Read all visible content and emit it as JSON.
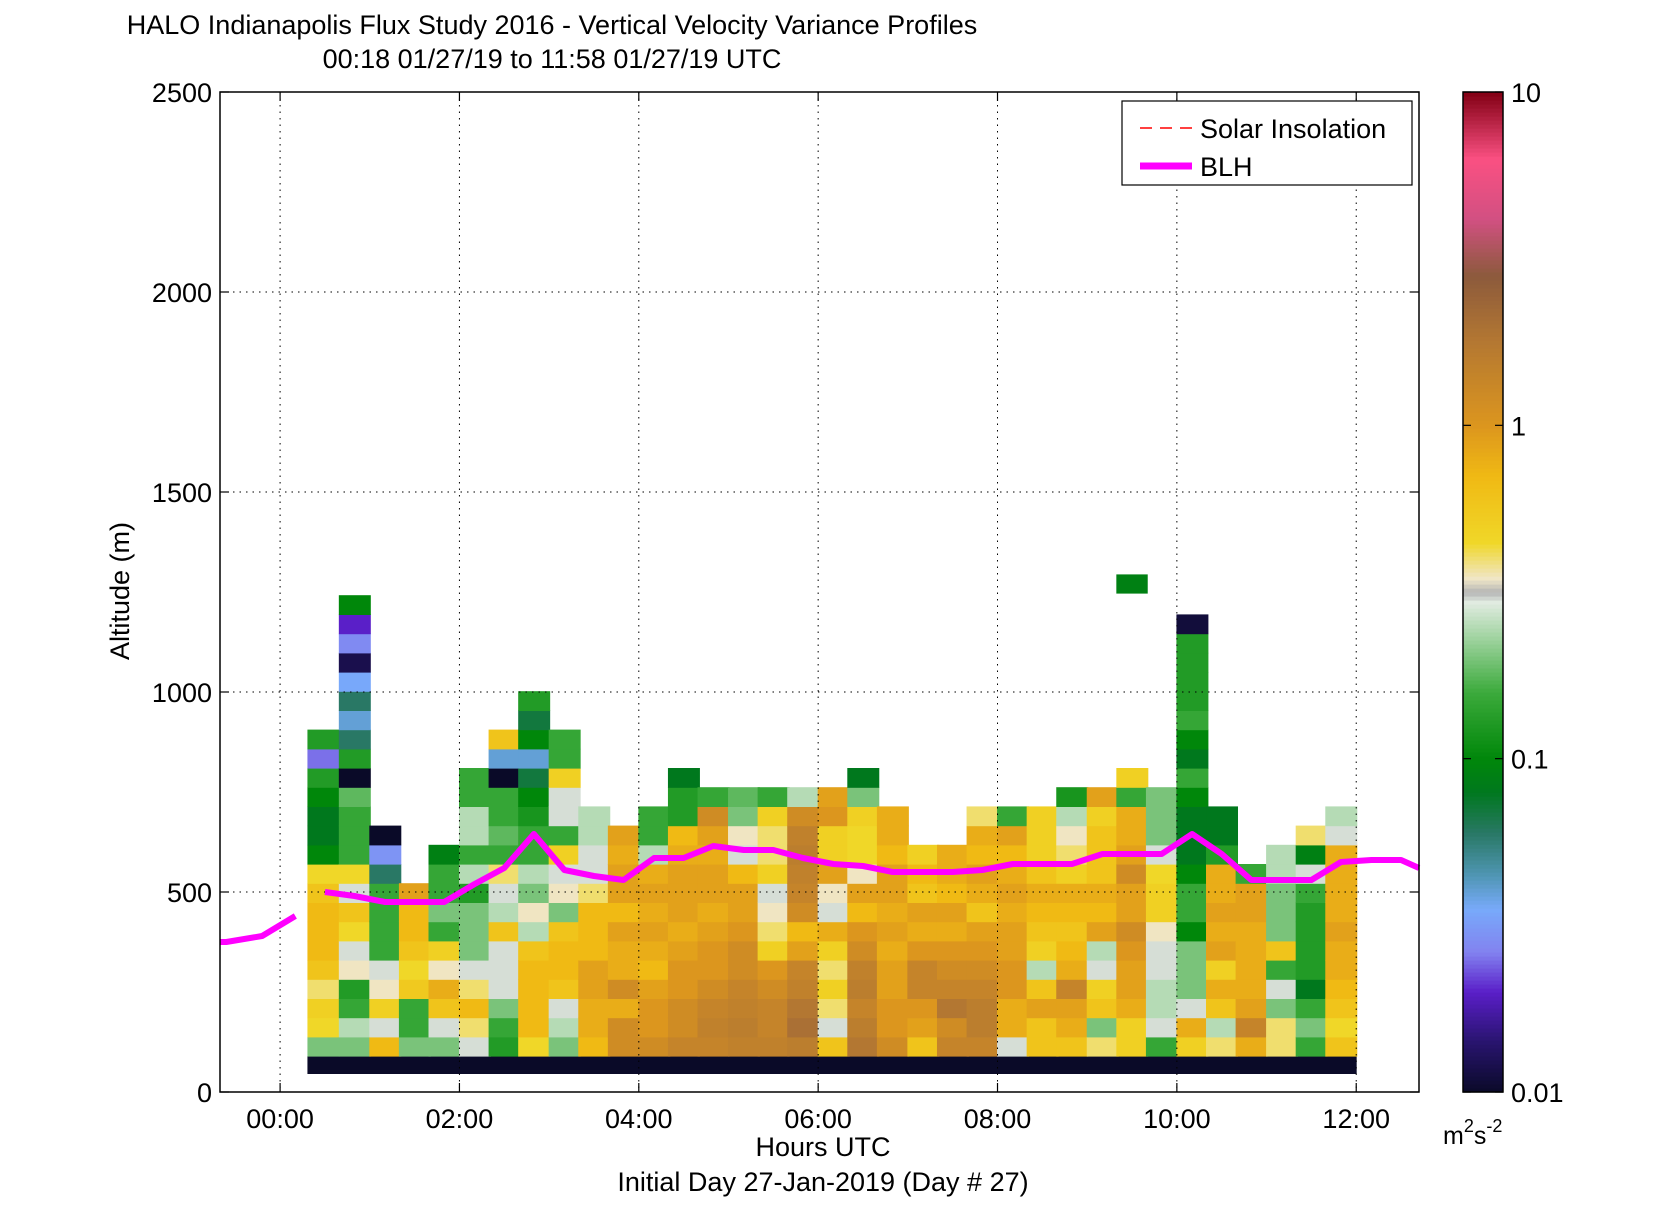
{
  "chart_data": {
    "type": "heatmap",
    "title": "HALO Indianapolis Flux Study 2016 - Vertical Velocity Variance Profiles",
    "subtitle": "00:18 01/27/19 to 11:58 01/27/19  UTC",
    "xlabel": "Hours UTC",
    "footer": "Initial Day 27-Jan-2019 (Day # 27)",
    "ylabel": "Altitude (m)",
    "xlim": [
      -0.67,
      12.7
    ],
    "ylim": [
      0,
      2500
    ],
    "x_ticks": [
      0,
      2,
      4,
      6,
      8,
      10,
      12
    ],
    "x_tick_labels": [
      "00:00",
      "02:00",
      "04:00",
      "06:00",
      "08:00",
      "10:00",
      "12:00"
    ],
    "y_ticks": [
      0,
      500,
      1000,
      1500,
      2000,
      2500
    ],
    "y_tick_labels": [
      "0",
      "500",
      "1000",
      "1500",
      "2000",
      "2500"
    ],
    "grid": true,
    "colorbar": {
      "scale": "log",
      "range": [
        0.01,
        10
      ],
      "ticks": [
        0.01,
        0.1,
        1,
        10
      ],
      "tick_labels": [
        "0.01",
        "0.1",
        "1",
        "10"
      ],
      "units_base": "m",
      "units_sup1": "2",
      "units_mid": "s",
      "units_sup2": "-2"
    },
    "legend": {
      "position": "top-right",
      "entries": [
        "Solar Insolation",
        "BLH"
      ],
      "colors": [
        "#ff0000",
        "#ff00ff"
      ]
    },
    "blh_series": {
      "name": "BLH",
      "color": "#ff00ff",
      "segments": [
        [
          [
            -0.67,
            375
          ],
          [
            -0.6,
            375
          ],
          [
            -0.2,
            390
          ],
          [
            0.17,
            440
          ]
        ],
        [
          [
            0.5,
            500
          ],
          [
            0.83,
            490
          ],
          [
            1.17,
            475
          ],
          [
            1.5,
            475
          ],
          [
            1.83,
            475
          ],
          [
            2.17,
            520
          ],
          [
            2.5,
            560
          ],
          [
            2.83,
            645
          ],
          [
            3.17,
            555
          ],
          [
            3.5,
            540
          ],
          [
            3.83,
            530
          ],
          [
            4.17,
            585
          ],
          [
            4.5,
            585
          ],
          [
            4.83,
            615
          ],
          [
            5.17,
            605
          ],
          [
            5.5,
            605
          ],
          [
            5.83,
            585
          ],
          [
            6.17,
            570
          ],
          [
            6.5,
            565
          ],
          [
            6.83,
            550
          ],
          [
            7.17,
            550
          ],
          [
            7.5,
            550
          ],
          [
            7.83,
            555
          ],
          [
            8.17,
            570
          ],
          [
            8.5,
            570
          ],
          [
            8.83,
            570
          ],
          [
            9.17,
            595
          ],
          [
            9.5,
            595
          ],
          [
            9.83,
            595
          ],
          [
            10.17,
            645
          ],
          [
            10.5,
            595
          ],
          [
            10.83,
            530
          ],
          [
            11.17,
            530
          ],
          [
            11.5,
            530
          ],
          [
            11.83,
            575
          ],
          [
            12.17,
            580
          ],
          [
            12.5,
            580
          ],
          [
            12.83,
            560
          ]
        ]
      ]
    },
    "profile_times": [
      0.48,
      0.83,
      1.17,
      1.5,
      1.83,
      2.17,
      2.5,
      2.83,
      3.17,
      3.5,
      3.83,
      4.17,
      4.5,
      4.83,
      5.17,
      5.5,
      5.83,
      6.17,
      6.5,
      6.83,
      7.17,
      7.5,
      7.83,
      8.17,
      8.5,
      8.83,
      9.17,
      9.5,
      9.83,
      10.17,
      10.5,
      10.83,
      11.17,
      11.5,
      11.83
    ],
    "altitude_bin_m": 48,
    "near_surface_band": {
      "z0": 45,
      "z1": 90,
      "value": 0.01
    },
    "profiles": [
      [
        0.2,
        0.45,
        0.5,
        0.4,
        0.6,
        0.7,
        0.7,
        0.7,
        0.6,
        0.45,
        0.1,
        0.08,
        0.08,
        0.1,
        0.13,
        0.025,
        0.13
      ],
      [
        0.2,
        0.25,
        0.15,
        0.13,
        0.35,
        0.3,
        0.45,
        0.6,
        0.3,
        0.45,
        0.15,
        0.15,
        0.15,
        0.18,
        0.01,
        0.13,
        0.06,
        0.04,
        0.06,
        0.035,
        0.012,
        0.028,
        0.02,
        0.1
      ],
      [
        0.7,
        0.3,
        0.5,
        0.35,
        0.3,
        0.15,
        0.15,
        0.15,
        0.15,
        0.06,
        0.03,
        0.01
      ],
      [
        0.2,
        0.15,
        0.15,
        0.55,
        0.45,
        0.6,
        0.7,
        0.7,
        0.9
      ],
      [
        0.2,
        0.3,
        0.6,
        0.8,
        0.35,
        0.5,
        0.15,
        0.2,
        0.15,
        0.15,
        0.09
      ],
      [
        0.3,
        0.4,
        0.7,
        0.4,
        0.3,
        0.2,
        0.2,
        0.2,
        0.13,
        0.25,
        0.15,
        0.25,
        0.25,
        0.15,
        0.15
      ],
      [
        0.13,
        0.15,
        0.2,
        0.3,
        0.3,
        0.3,
        0.6,
        0.25,
        0.3,
        0.4,
        0.15,
        0.18,
        0.15,
        0.15,
        0.01,
        0.04,
        0.6
      ],
      [
        0.45,
        0.7,
        0.7,
        0.7,
        0.7,
        0.6,
        0.25,
        0.35,
        0.2,
        0.25,
        0.15,
        0.15,
        0.12,
        0.1,
        0.07,
        0.04,
        0.1,
        0.07,
        0.13
      ],
      [
        0.2,
        0.25,
        0.3,
        0.6,
        0.7,
        0.7,
        0.6,
        0.2,
        0.35,
        0.3,
        0.5,
        0.15,
        0.3,
        0.3,
        0.5,
        0.15,
        0.15
      ],
      [
        0.7,
        0.8,
        0.8,
        0.9,
        0.9,
        0.7,
        0.7,
        0.7,
        0.4,
        0.3,
        0.3,
        0.25,
        0.25
      ],
      [
        1.2,
        1.2,
        0.8,
        1.2,
        0.8,
        0.8,
        0.9,
        0.7,
        0.9,
        0.9,
        0.8,
        0.9
      ],
      [
        1.2,
        1.0,
        1.0,
        0.9,
        0.7,
        0.8,
        0.9,
        0.8,
        0.9,
        0.8,
        0.25,
        0.15,
        0.15
      ],
      [
        1.4,
        1.2,
        1.2,
        1.0,
        1.0,
        0.9,
        0.8,
        0.9,
        0.9,
        0.9,
        0.8,
        0.7,
        0.13,
        0.13,
        0.08
      ],
      [
        1.4,
        1.5,
        1.4,
        1.2,
        1.0,
        1.0,
        0.9,
        0.8,
        0.9,
        0.9,
        0.8,
        0.9,
        1.2,
        0.15
      ],
      [
        1.5,
        1.6,
        1.5,
        1.4,
        1.2,
        1.2,
        1.0,
        0.9,
        0.9,
        0.7,
        0.3,
        0.35,
        0.2,
        0.18
      ],
      [
        1.5,
        1.4,
        1.4,
        1.2,
        1.0,
        0.5,
        0.4,
        0.35,
        0.3,
        0.5,
        0.4,
        0.4,
        0.5,
        0.15
      ],
      [
        1.6,
        2.0,
        1.8,
        1.5,
        1.4,
        0.9,
        0.7,
        1.2,
        1.4,
        1.5,
        1.6,
        1.5,
        1.2,
        0.25
      ],
      [
        0.6,
        0.3,
        0.4,
        0.5,
        0.4,
        0.5,
        0.8,
        0.3,
        0.35,
        0.9,
        0.5,
        0.5,
        1.0,
        0.9
      ],
      [
        1.8,
        1.6,
        1.4,
        1.6,
        1.5,
        1.2,
        1.0,
        0.7,
        0.9,
        0.35,
        0.45,
        0.45,
        0.5,
        0.2,
        0.08
      ],
      [
        1.2,
        1.0,
        1.0,
        0.9,
        0.9,
        0.8,
        0.9,
        0.8,
        0.9,
        0.9,
        0.7,
        0.8,
        0.8
      ],
      [
        0.6,
        0.9,
        1.0,
        1.4,
        1.4,
        1.0,
        0.8,
        0.9,
        0.6,
        0.7,
        0.5
      ],
      [
        1.4,
        1.2,
        1.8,
        1.4,
        1.2,
        1.0,
        0.8,
        0.9,
        0.7,
        0.8,
        0.8
      ],
      [
        1.4,
        1.6,
        1.6,
        1.4,
        1.2,
        1.0,
        0.9,
        0.6,
        0.8,
        0.9,
        0.7,
        0.8,
        0.4
      ],
      [
        0.3,
        0.8,
        0.8,
        1.0,
        1.0,
        0.9,
        0.9,
        0.8,
        0.9,
        0.8,
        0.7,
        0.9,
        0.15
      ],
      [
        0.6,
        0.6,
        0.9,
        0.6,
        0.25,
        0.5,
        0.6,
        0.7,
        0.8,
        0.6,
        0.5,
        0.5,
        0.5
      ],
      [
        0.6,
        0.8,
        0.9,
        1.4,
        0.8,
        0.7,
        0.6,
        0.7,
        0.8,
        0.5,
        0.4,
        0.35,
        0.25,
        0.12
      ],
      [
        0.4,
        0.2,
        0.6,
        0.5,
        0.3,
        0.25,
        0.9,
        0.7,
        0.8,
        0.6,
        0.6,
        0.6,
        0.5,
        0.9
      ],
      [
        0.5,
        0.5,
        0.8,
        0.9,
        0.9,
        1.0,
        1.2,
        0.9,
        0.9,
        1.2,
        0.9,
        0.8,
        0.8,
        0.15,
        0.5
      ],
      [
        0.15,
        0.3,
        0.25,
        0.25,
        0.3,
        0.3,
        0.35,
        0.5,
        0.5,
        0.45,
        0.3,
        0.2,
        0.2,
        0.2
      ],
      [
        0.5,
        0.8,
        0.3,
        0.2,
        0.2,
        0.2,
        0.1,
        0.15,
        0.15,
        0.1,
        0.08,
        0.08,
        0.08,
        0.1,
        0.15,
        0.08,
        0.1,
        0.15,
        0.13,
        0.13,
        0.13,
        0.13,
        0.011
      ],
      [
        0.4,
        0.25,
        0.6,
        0.8,
        0.5,
        0.9,
        0.8,
        0.9,
        0.8,
        0.8,
        0.13,
        0.08,
        0.08
      ],
      [
        0.8,
        1.4,
        0.9,
        0.8,
        0.8,
        0.8,
        0.8,
        0.9,
        0.9,
        0.15
      ],
      [
        0.4,
        0.4,
        0.2,
        0.3,
        0.15,
        0.6,
        0.2,
        0.2,
        0.2,
        0.25,
        0.25
      ],
      [
        0.15,
        0.2,
        0.15,
        0.08,
        0.13,
        0.13,
        0.13,
        0.13,
        0.15,
        0.3,
        0.09,
        0.4
      ],
      [
        0.6,
        0.45,
        0.6,
        0.7,
        0.8,
        0.8,
        0.9,
        0.8,
        0.8,
        0.8,
        0.8,
        0.3,
        0.25
      ]
    ],
    "isolated_cells": [
      {
        "t": 9.5,
        "z": 1270,
        "value": 0.09
      }
    ]
  }
}
